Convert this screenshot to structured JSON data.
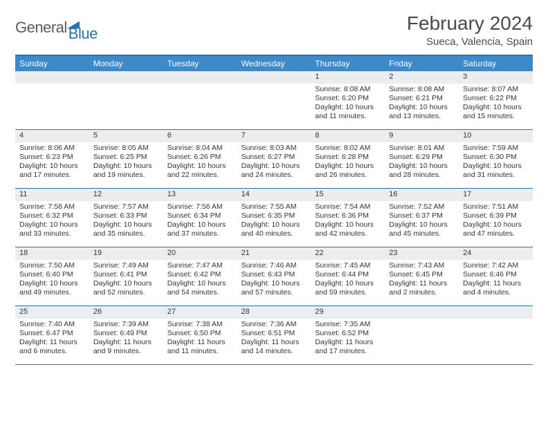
{
  "brand": {
    "part1": "General",
    "part2": "Blue"
  },
  "title": "February 2024",
  "location": "Sueca, Valencia, Spain",
  "colors": {
    "header_bar": "#3e8ac9",
    "header_rule": "#2b71b8",
    "daynum_bg": "#ecedee",
    "text": "#333333",
    "brand_gray": "#5a5a5a",
    "brand_blue": "#2b71b8",
    "page_bg": "#ffffff"
  },
  "day_names": [
    "Sunday",
    "Monday",
    "Tuesday",
    "Wednesday",
    "Thursday",
    "Friday",
    "Saturday"
  ],
  "fonts": {
    "title_size": 28,
    "location_size": 15,
    "dayname_size": 12,
    "cell_size": 10.5
  },
  "weeks": [
    [
      {
        "day": ""
      },
      {
        "day": ""
      },
      {
        "day": ""
      },
      {
        "day": ""
      },
      {
        "day": "1",
        "sunrise": "Sunrise: 8:08 AM",
        "sunset": "Sunset: 6:20 PM",
        "daylight": "Daylight: 10 hours and 11 minutes."
      },
      {
        "day": "2",
        "sunrise": "Sunrise: 8:08 AM",
        "sunset": "Sunset: 6:21 PM",
        "daylight": "Daylight: 10 hours and 13 minutes."
      },
      {
        "day": "3",
        "sunrise": "Sunrise: 8:07 AM",
        "sunset": "Sunset: 6:22 PM",
        "daylight": "Daylight: 10 hours and 15 minutes."
      }
    ],
    [
      {
        "day": "4",
        "sunrise": "Sunrise: 8:06 AM",
        "sunset": "Sunset: 6:23 PM",
        "daylight": "Daylight: 10 hours and 17 minutes."
      },
      {
        "day": "5",
        "sunrise": "Sunrise: 8:05 AM",
        "sunset": "Sunset: 6:25 PM",
        "daylight": "Daylight: 10 hours and 19 minutes."
      },
      {
        "day": "6",
        "sunrise": "Sunrise: 8:04 AM",
        "sunset": "Sunset: 6:26 PM",
        "daylight": "Daylight: 10 hours and 22 minutes."
      },
      {
        "day": "7",
        "sunrise": "Sunrise: 8:03 AM",
        "sunset": "Sunset: 6:27 PM",
        "daylight": "Daylight: 10 hours and 24 minutes."
      },
      {
        "day": "8",
        "sunrise": "Sunrise: 8:02 AM",
        "sunset": "Sunset: 6:28 PM",
        "daylight": "Daylight: 10 hours and 26 minutes."
      },
      {
        "day": "9",
        "sunrise": "Sunrise: 8:01 AM",
        "sunset": "Sunset: 6:29 PM",
        "daylight": "Daylight: 10 hours and 28 minutes."
      },
      {
        "day": "10",
        "sunrise": "Sunrise: 7:59 AM",
        "sunset": "Sunset: 6:30 PM",
        "daylight": "Daylight: 10 hours and 31 minutes."
      }
    ],
    [
      {
        "day": "11",
        "sunrise": "Sunrise: 7:58 AM",
        "sunset": "Sunset: 6:32 PM",
        "daylight": "Daylight: 10 hours and 33 minutes."
      },
      {
        "day": "12",
        "sunrise": "Sunrise: 7:57 AM",
        "sunset": "Sunset: 6:33 PM",
        "daylight": "Daylight: 10 hours and 35 minutes."
      },
      {
        "day": "13",
        "sunrise": "Sunrise: 7:56 AM",
        "sunset": "Sunset: 6:34 PM",
        "daylight": "Daylight: 10 hours and 37 minutes."
      },
      {
        "day": "14",
        "sunrise": "Sunrise: 7:55 AM",
        "sunset": "Sunset: 6:35 PM",
        "daylight": "Daylight: 10 hours and 40 minutes."
      },
      {
        "day": "15",
        "sunrise": "Sunrise: 7:54 AM",
        "sunset": "Sunset: 6:36 PM",
        "daylight": "Daylight: 10 hours and 42 minutes."
      },
      {
        "day": "16",
        "sunrise": "Sunrise: 7:52 AM",
        "sunset": "Sunset: 6:37 PM",
        "daylight": "Daylight: 10 hours and 45 minutes."
      },
      {
        "day": "17",
        "sunrise": "Sunrise: 7:51 AM",
        "sunset": "Sunset: 6:39 PM",
        "daylight": "Daylight: 10 hours and 47 minutes."
      }
    ],
    [
      {
        "day": "18",
        "sunrise": "Sunrise: 7:50 AM",
        "sunset": "Sunset: 6:40 PM",
        "daylight": "Daylight: 10 hours and 49 minutes."
      },
      {
        "day": "19",
        "sunrise": "Sunrise: 7:49 AM",
        "sunset": "Sunset: 6:41 PM",
        "daylight": "Daylight: 10 hours and 52 minutes."
      },
      {
        "day": "20",
        "sunrise": "Sunrise: 7:47 AM",
        "sunset": "Sunset: 6:42 PM",
        "daylight": "Daylight: 10 hours and 54 minutes."
      },
      {
        "day": "21",
        "sunrise": "Sunrise: 7:46 AM",
        "sunset": "Sunset: 6:43 PM",
        "daylight": "Daylight: 10 hours and 57 minutes."
      },
      {
        "day": "22",
        "sunrise": "Sunrise: 7:45 AM",
        "sunset": "Sunset: 6:44 PM",
        "daylight": "Daylight: 10 hours and 59 minutes."
      },
      {
        "day": "23",
        "sunrise": "Sunrise: 7:43 AM",
        "sunset": "Sunset: 6:45 PM",
        "daylight": "Daylight: 11 hours and 2 minutes."
      },
      {
        "day": "24",
        "sunrise": "Sunrise: 7:42 AM",
        "sunset": "Sunset: 6:46 PM",
        "daylight": "Daylight: 11 hours and 4 minutes."
      }
    ],
    [
      {
        "day": "25",
        "sunrise": "Sunrise: 7:40 AM",
        "sunset": "Sunset: 6:47 PM",
        "daylight": "Daylight: 11 hours and 6 minutes."
      },
      {
        "day": "26",
        "sunrise": "Sunrise: 7:39 AM",
        "sunset": "Sunset: 6:49 PM",
        "daylight": "Daylight: 11 hours and 9 minutes."
      },
      {
        "day": "27",
        "sunrise": "Sunrise: 7:38 AM",
        "sunset": "Sunset: 6:50 PM",
        "daylight": "Daylight: 11 hours and 11 minutes."
      },
      {
        "day": "28",
        "sunrise": "Sunrise: 7:36 AM",
        "sunset": "Sunset: 6:51 PM",
        "daylight": "Daylight: 11 hours and 14 minutes."
      },
      {
        "day": "29",
        "sunrise": "Sunrise: 7:35 AM",
        "sunset": "Sunset: 6:52 PM",
        "daylight": "Daylight: 11 hours and 17 minutes."
      },
      {
        "day": ""
      },
      {
        "day": ""
      }
    ]
  ]
}
